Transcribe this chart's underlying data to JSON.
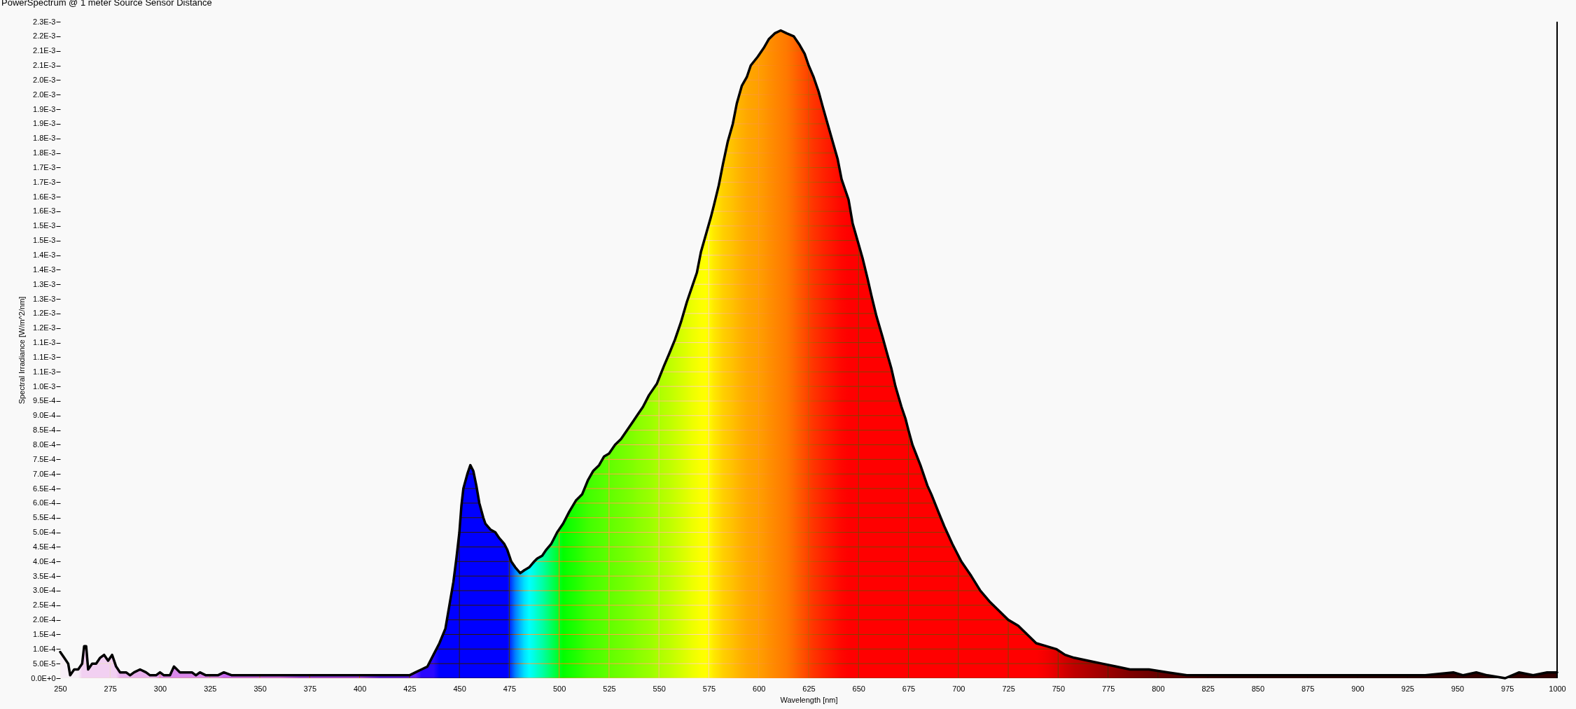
{
  "chart_data": {
    "type": "area",
    "title": "PowerSpectrum @ 1 meter Source Sensor Distance",
    "xlabel": "Wavelength [nm]",
    "ylabel": "Spectral Irradiance [W/m^2/nm]",
    "x": [
      250,
      252,
      254,
      255,
      257,
      259,
      261,
      262,
      263,
      264,
      266,
      268,
      270,
      272,
      274,
      276,
      278,
      280,
      283,
      285,
      287,
      290,
      293,
      295,
      298,
      300,
      302,
      305,
      307,
      310,
      313,
      316,
      318,
      320,
      323,
      326,
      329,
      332,
      336,
      340,
      345,
      350,
      360,
      370,
      380,
      390,
      400,
      410,
      420,
      425,
      428,
      431,
      434,
      437,
      440,
      443,
      445,
      447,
      448.5,
      450,
      451,
      452,
      454,
      455.5,
      457,
      458.5,
      460,
      462,
      463,
      465.5,
      468,
      470,
      472.5,
      474,
      476,
      478,
      480.5,
      482.5,
      485,
      487.5,
      489,
      491.5,
      493.5,
      496,
      499,
      502,
      505,
      508.5,
      511.5,
      514.5,
      517,
      520,
      522.5,
      525,
      528,
      531,
      534,
      537,
      539,
      542,
      545,
      549,
      552.5,
      555,
      558,
      561,
      564,
      566.5,
      569,
      571,
      573.5,
      576,
      577.5,
      580,
      582,
      584.5,
      587,
      589,
      591.5,
      594,
      596,
      599.5,
      602.5,
      605,
      608,
      611,
      614,
      617.5,
      620.5,
      623,
      625,
      627.5,
      630,
      632,
      634.5,
      637,
      639.5,
      641.5,
      645,
      647,
      649.5,
      652,
      654.5,
      656.5,
      659,
      662,
      664,
      666.5,
      668.5,
      671.5,
      673.5,
      675,
      677,
      681,
      684.5,
      686.5,
      690,
      693,
      697,
      701.5,
      706.5,
      711,
      716,
      720.5,
      725,
      730,
      734.5,
      739,
      744,
      749,
      753.5,
      758,
      765,
      772,
      779,
      786,
      795.5,
      805,
      814.5,
      824,
      838,
      852,
      875,
      899,
      913,
      934,
      948,
      953,
      959.5,
      965,
      974,
      981,
      988,
      995,
      1000
    ],
    "values": [
      9e-05,
      7e-05,
      5e-05,
      1e-05,
      3e-05,
      3e-05,
      5e-05,
      0.00011,
      0.00011,
      3e-05,
      5e-05,
      5e-05,
      7e-05,
      8e-05,
      6e-05,
      8e-05,
      4e-05,
      2e-05,
      2e-05,
      1e-05,
      2e-05,
      3e-05,
      2e-05,
      1e-05,
      1e-05,
      2e-05,
      1e-05,
      1e-05,
      4e-05,
      2e-05,
      2e-05,
      2e-05,
      1e-05,
      2e-05,
      1e-05,
      1e-05,
      1e-05,
      2e-05,
      1e-05,
      1e-05,
      1e-05,
      1e-05,
      1e-05,
      1e-05,
      1e-05,
      1e-05,
      1e-05,
      1e-05,
      1e-05,
      1e-05,
      2e-05,
      3e-05,
      4e-05,
      8e-05,
      0.00012,
      0.00017,
      0.00025,
      0.00033,
      0.00041,
      0.0005,
      0.00059,
      0.00065,
      0.0007,
      0.00073,
      0.00071,
      0.00066,
      0.0006,
      0.00055,
      0.00053,
      0.00051,
      0.0005,
      0.00048,
      0.00046,
      0.00044,
      0.0004,
      0.00038,
      0.00036,
      0.00037,
      0.00038,
      0.0004,
      0.00041,
      0.00042,
      0.00044,
      0.00046,
      0.0005,
      0.00053,
      0.00057,
      0.00061,
      0.00063,
      0.00068,
      0.00071,
      0.00073,
      0.00076,
      0.00077,
      0.0008,
      0.00082,
      0.00085,
      0.00088,
      0.0009,
      0.00093,
      0.00097,
      0.00101,
      0.00107,
      0.00111,
      0.00116,
      0.00122,
      0.00129,
      0.00134,
      0.00139,
      0.00146,
      0.00152,
      0.00158,
      0.00162,
      0.00169,
      0.00176,
      0.00184,
      0.0019,
      0.00197,
      0.00203,
      0.00206,
      0.0021,
      0.00213,
      0.00216,
      0.00219,
      0.00221,
      0.00222,
      0.00221,
      0.0022,
      0.00217,
      0.00214,
      0.0021,
      0.00206,
      0.00201,
      0.00196,
      0.0019,
      0.00184,
      0.00178,
      0.00171,
      0.00164,
      0.00156,
      0.0015,
      0.00144,
      0.00137,
      0.00131,
      0.00124,
      0.00117,
      0.00112,
      0.00106,
      0.001,
      0.00093,
      0.00089,
      0.00085,
      0.0008,
      0.00073,
      0.00066,
      0.00063,
      0.00057,
      0.00052,
      0.00046,
      0.0004,
      0.00035,
      0.0003,
      0.00026,
      0.00023,
      0.0002,
      0.00018,
      0.00015,
      0.00012,
      0.00011,
      0.0001,
      8e-05,
      7e-05,
      6e-05,
      5e-05,
      4e-05,
      3e-05,
      3e-05,
      2e-05,
      1e-05,
      1e-05,
      1e-05,
      1e-05,
      1e-05,
      1e-05,
      1e-05,
      1e-05,
      2e-05,
      1e-05,
      2e-05,
      1e-05,
      0,
      2e-05,
      1e-05,
      2e-05,
      2e-05
    ],
    "color": "#000000",
    "colors": [
      "#f7eef7",
      "#f7eef7",
      "#f7eef7",
      "#f7eef7",
      "#f7eef7",
      "#f7eef7",
      "#f2d0f2",
      "#f2d0f2",
      "#f2d0f2",
      "#f2d0f2",
      "#f2d0f2",
      "#f2d0f2",
      "#f2d0f2",
      "#f2d0f2",
      "#f2d0f2",
      "#f2d0f2",
      "#f2d0f2",
      "#e8b0ec",
      "#e8b0ec",
      "#e8b0ec",
      "#e8b0ec",
      "#e8b0ec",
      "#e8b0ec",
      "#e8b0ec",
      "#e8b0ec",
      "#da88ea",
      "#da88ea",
      "#da88ea",
      "#da88ea",
      "#da88ea",
      "#da88ea",
      "#da88ea",
      "#da88ea",
      "#da88ea",
      "#da88ea",
      "#da88ea",
      "#da88ea",
      "#c868f0",
      "#c868f0",
      "#c868f0",
      "#c868f0",
      "#c868f0",
      "#c868f0",
      "#a048f8",
      "#a048f8",
      "#a048f8",
      "#a048f8",
      "#6020ff",
      "#6020ff",
      "#6020ff",
      "#6020ff",
      "#2a08ff",
      "#2a08ff",
      "#2a08ff",
      "#0000ff",
      "#0000ff",
      "#0000ff",
      "#0000ff",
      "#0000ff",
      "#0000ff",
      "#0000ff",
      "#0000ff",
      "#0000ff",
      "#0000ff",
      "#0000ff",
      "#0000ff",
      "#0000ff",
      "#0000ff",
      "#0000ff",
      "#0000ff",
      "#0000ff",
      "#0000ff",
      "#0000ff",
      "#0000ff",
      "#0040ff",
      "#0080ff",
      "#00b8ff",
      "#00e0ff",
      "#00ffff",
      "#00ffe0",
      "#00ffc8",
      "#00ffa8",
      "#00ff88",
      "#00ff60",
      "#00ff30",
      "#00ff00",
      "#10ff00",
      "#20ff00",
      "#30ff00",
      "#40ff00",
      "#48ff00",
      "#50ff00",
      "#58ff00",
      "#60ff00",
      "#68ff00",
      "#70ff00",
      "#78ff00",
      "#80ff00",
      "#88ff00",
      "#90ff00",
      "#98ff00",
      "#a8ff00",
      "#b4ff00",
      "#bcff00",
      "#c8ff00",
      "#d4ff00",
      "#e0ff00",
      "#ecff00",
      "#f4ff00",
      "#fcff00",
      "#ffff00",
      "#fff400",
      "#ffe800",
      "#ffdc00",
      "#ffd000",
      "#ffc800",
      "#ffc000",
      "#ffb800",
      "#ffb000",
      "#ffa800",
      "#ffa400",
      "#ffa000",
      "#ff9800",
      "#ff9000",
      "#ff8800",
      "#ff8000",
      "#ff7800",
      "#ff6800",
      "#ff5800",
      "#ff4c00",
      "#ff4000",
      "#ff3400",
      "#ff2c00",
      "#ff2400",
      "#ff1c00",
      "#ff1400",
      "#ff0c00",
      "#ff0600",
      "#ff0000",
      "#ff0000",
      "#ff0000",
      "#ff0000",
      "#ff0000",
      "#ff0000",
      "#ff0000",
      "#ff0000",
      "#ff0000",
      "#ff0000",
      "#ff0000",
      "#ff0000",
      "#ff0000",
      "#ff0000",
      "#ff0000",
      "#ff0000",
      "#ff0000",
      "#ff0000",
      "#ff0000",
      "#ff0000",
      "#ff0000",
      "#ff0000",
      "#ff0000",
      "#ff0000",
      "#ff0000",
      "#ff0000",
      "#ff0000",
      "#ff0000",
      "#ff0000",
      "#ff0000",
      "#f40000",
      "#e40000",
      "#d00000",
      "#c00000",
      "#b00000",
      "#a00000",
      "#900000",
      "#800000",
      "#700000",
      "#600000",
      "#500000",
      "#400000",
      "#300000",
      "#300000",
      "#300000",
      "#300000",
      "#300000",
      "#300000",
      "#300000",
      "#300000",
      "#300000",
      "#300000",
      "#300000",
      "#300000",
      "#300000",
      "#300000",
      "#300000"
    ],
    "xlim": [
      250,
      1000
    ],
    "ylim": [
      0,
      0.00225
    ],
    "xticks": [
      250,
      275,
      300,
      325,
      350,
      375,
      400,
      425,
      450,
      475,
      500,
      525,
      550,
      575,
      600,
      625,
      650,
      675,
      700,
      725,
      750,
      775,
      800,
      825,
      850,
      875,
      900,
      925,
      950,
      975,
      1000
    ],
    "yticks": [
      {
        "value": 0,
        "label": "0.0E+0"
      },
      {
        "value": 5e-05,
        "label": "5.0E-5"
      },
      {
        "value": 0.0001,
        "label": "1.0E-4"
      },
      {
        "value": 0.00015,
        "label": "1.5E-4"
      },
      {
        "value": 0.0002,
        "label": "2.0E-4"
      },
      {
        "value": 0.00025,
        "label": "2.5E-4"
      },
      {
        "value": 0.0003,
        "label": "3.0E-4"
      },
      {
        "value": 0.00035,
        "label": "3.5E-4"
      },
      {
        "value": 0.0004,
        "label": "4.0E-4"
      },
      {
        "value": 0.00045,
        "label": "4.5E-4"
      },
      {
        "value": 0.0005,
        "label": "5.0E-4"
      },
      {
        "value": 0.00055,
        "label": "5.5E-4"
      },
      {
        "value": 0.0006,
        "label": "6.0E-4"
      },
      {
        "value": 0.00065,
        "label": "6.5E-4"
      },
      {
        "value": 0.0007,
        "label": "7.0E-4"
      },
      {
        "value": 0.00075,
        "label": "7.5E-4"
      },
      {
        "value": 0.0008,
        "label": "8.0E-4"
      },
      {
        "value": 0.00085,
        "label": "8.5E-4"
      },
      {
        "value": 0.0009,
        "label": "9.0E-4"
      },
      {
        "value": 0.00095,
        "label": "9.5E-4"
      },
      {
        "value": 0.001,
        "label": "1.0E-3"
      },
      {
        "value": 0.00105,
        "label": "1.1E-3"
      },
      {
        "value": 0.0011,
        "label": "1.1E-3"
      },
      {
        "value": 0.00115,
        "label": "1.1E-3"
      },
      {
        "value": 0.0012,
        "label": "1.2E-3"
      },
      {
        "value": 0.00125,
        "label": "1.2E-3"
      },
      {
        "value": 0.0013,
        "label": "1.3E-3"
      },
      {
        "value": 0.00135,
        "label": "1.3E-3"
      },
      {
        "value": 0.0014,
        "label": "1.4E-3"
      },
      {
        "value": 0.00145,
        "label": "1.4E-3"
      },
      {
        "value": 0.0015,
        "label": "1.5E-3"
      },
      {
        "value": 0.00155,
        "label": "1.5E-3"
      },
      {
        "value": 0.0016,
        "label": "1.6E-3"
      },
      {
        "value": 0.00165,
        "label": "1.6E-3"
      },
      {
        "value": 0.0017,
        "label": "1.7E-3"
      },
      {
        "value": 0.00175,
        "label": "1.7E-3"
      },
      {
        "value": 0.0018,
        "label": "1.8E-3"
      },
      {
        "value": 0.00185,
        "label": "1.8E-3"
      },
      {
        "value": 0.0019,
        "label": "1.9E-3"
      },
      {
        "value": 0.00195,
        "label": "1.9E-3"
      },
      {
        "value": 0.002,
        "label": "2.0E-3"
      },
      {
        "value": 0.00205,
        "label": "2.0E-3"
      },
      {
        "value": 0.0021,
        "label": "2.1E-3"
      },
      {
        "value": 0.00215,
        "label": "2.1E-3"
      },
      {
        "value": 0.0022,
        "label": "2.2E-3"
      },
      {
        "value": 0.00225,
        "label": "2.3E-3"
      }
    ],
    "grid": true
  }
}
